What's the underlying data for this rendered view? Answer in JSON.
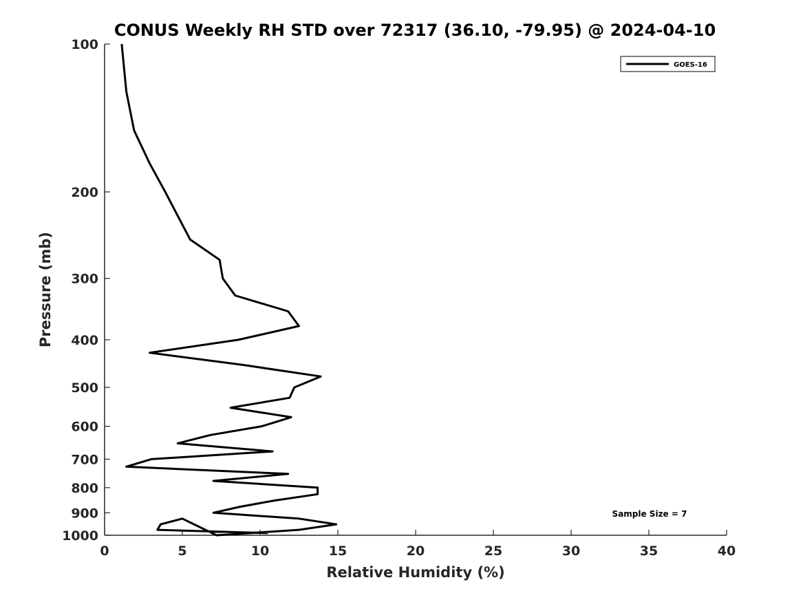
{
  "chart_data": {
    "type": "line",
    "title": "CONUS Weekly RH STD over 72317 (36.10, -79.95) @ 2024-04-10",
    "xlabel": "Relative Humidity (%)",
    "ylabel": "Pressure (mb)",
    "xlim": [
      0,
      40
    ],
    "ylim": [
      1000,
      100
    ],
    "y_scale": "log",
    "y_reversed": true,
    "x_ticks": [
      0,
      5,
      10,
      15,
      20,
      25,
      30,
      35,
      40
    ],
    "x_tick_labels": [
      "0",
      "5",
      "10",
      "15",
      "20",
      "25",
      "30",
      "35",
      "40"
    ],
    "y_ticks": [
      100,
      200,
      300,
      400,
      500,
      600,
      700,
      800,
      900,
      1000
    ],
    "y_tick_labels": [
      "100",
      "200",
      "300",
      "400",
      "500",
      "600",
      "700",
      "800",
      "900",
      "1000"
    ],
    "grid": false,
    "legend_position": "top-right",
    "annotation": "Sample Size = 7",
    "series": [
      {
        "name": "GOES-16",
        "color": "#000000",
        "points": [
          [
            1.1,
            100
          ],
          [
            1.4,
            125
          ],
          [
            1.9,
            150
          ],
          [
            2.9,
            175
          ],
          [
            3.9,
            200
          ],
          [
            5.5,
            250
          ],
          [
            7.4,
            275
          ],
          [
            7.6,
            300
          ],
          [
            8.4,
            325
          ],
          [
            11.8,
            350
          ],
          [
            12.5,
            375
          ],
          [
            8.6,
            400
          ],
          [
            2.9,
            425
          ],
          [
            8.9,
            450
          ],
          [
            13.9,
            475
          ],
          [
            12.2,
            500
          ],
          [
            11.9,
            525
          ],
          [
            8.1,
            550
          ],
          [
            12.0,
            575
          ],
          [
            10.1,
            600
          ],
          [
            6.8,
            625
          ],
          [
            4.7,
            650
          ],
          [
            10.8,
            675
          ],
          [
            3.0,
            700
          ],
          [
            1.4,
            725
          ],
          [
            11.8,
            750
          ],
          [
            7.0,
            775
          ],
          [
            13.7,
            800
          ],
          [
            13.7,
            825
          ],
          [
            10.9,
            850
          ],
          [
            8.7,
            875
          ],
          [
            7.0,
            900
          ],
          [
            12.5,
            925
          ],
          [
            14.9,
            950
          ],
          [
            12.5,
            975
          ],
          [
            7.2,
            1000
          ],
          [
            5.0,
            925
          ],
          [
            3.6,
            950
          ],
          [
            3.4,
            975
          ],
          [
            10.5,
            990
          ]
        ]
      }
    ]
  }
}
